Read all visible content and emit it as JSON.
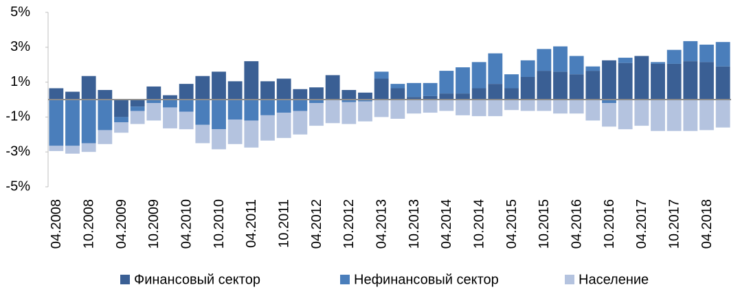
{
  "chart_data": {
    "type": "bar",
    "stacked": true,
    "categories": [
      "04.2008",
      null,
      "10.2008",
      null,
      "04.2009",
      null,
      "10.2009",
      null,
      "04.2010",
      null,
      "10.2010",
      null,
      "04.2011",
      null,
      "10.2011",
      null,
      "04.2012",
      null,
      "10.2012",
      null,
      "04.2013",
      null,
      "10.2013",
      null,
      "04.2014",
      null,
      "10.2014",
      null,
      "04.2015",
      null,
      "10.2015",
      null,
      "04.2016",
      null,
      "10.2016",
      null,
      "04.2017",
      null,
      "10.2017",
      null,
      "04.2018",
      null
    ],
    "series": [
      {
        "name": "Финансовый сектор",
        "color": "#3a5f94",
        "values": [
          0.65,
          0.45,
          1.35,
          0.55,
          -1.0,
          -0.4,
          0.75,
          0.25,
          0.9,
          1.35,
          1.6,
          1.05,
          2.2,
          1.05,
          1.2,
          0.6,
          0.7,
          1.4,
          0.55,
          0.4,
          1.2,
          0.65,
          0.15,
          0.2,
          0.35,
          0.35,
          0.65,
          0.9,
          0.65,
          1.3,
          1.65,
          1.6,
          1.45,
          1.65,
          2.25,
          2.1,
          2.5,
          2.05,
          2.05,
          2.2,
          2.15,
          1.9
        ]
      },
      {
        "name": "Нефинансовый сектор",
        "color": "#4a7ebb",
        "values": [
          -2.65,
          -2.65,
          -2.5,
          -1.75,
          -0.3,
          -0.25,
          -0.2,
          -0.45,
          -0.7,
          -1.45,
          -1.7,
          -1.15,
          -1.2,
          -0.9,
          -0.75,
          -0.65,
          -0.2,
          0,
          -0.15,
          -0.1,
          0.4,
          0.25,
          0.8,
          0.75,
          1.3,
          1.5,
          1.5,
          1.75,
          0.8,
          0.95,
          1.25,
          1.45,
          1.05,
          0.25,
          -0.2,
          0.3,
          0,
          0.1,
          0.8,
          1.15,
          1.0,
          1.4
        ]
      },
      {
        "name": "Население",
        "color": "#b4c3df",
        "values": [
          -0.3,
          -0.45,
          -0.5,
          -0.8,
          -0.6,
          -0.75,
          -1.0,
          -1.2,
          -1.0,
          -1.05,
          -1.15,
          -1.4,
          -1.55,
          -1.45,
          -1.45,
          -1.35,
          -1.3,
          -1.35,
          -1.25,
          -1.15,
          -1.0,
          -1.1,
          -0.8,
          -0.75,
          -0.65,
          -0.9,
          -0.95,
          -0.95,
          -0.6,
          -0.65,
          -0.65,
          -0.8,
          -0.8,
          -1.2,
          -1.35,
          -1.7,
          -1.5,
          -1.8,
          -1.8,
          -1.8,
          -1.75,
          -1.6
        ]
      }
    ],
    "ylim": [
      -5,
      5
    ],
    "yticks": [
      {
        "value": -5,
        "label": "-5%"
      },
      {
        "value": -3,
        "label": "-3%"
      },
      {
        "value": -1,
        "label": "-1%"
      },
      {
        "value": 1,
        "label": "1%"
      },
      {
        "value": 3,
        "label": "3%"
      },
      {
        "value": 5,
        "label": "5%"
      }
    ],
    "legend": "bottom"
  }
}
